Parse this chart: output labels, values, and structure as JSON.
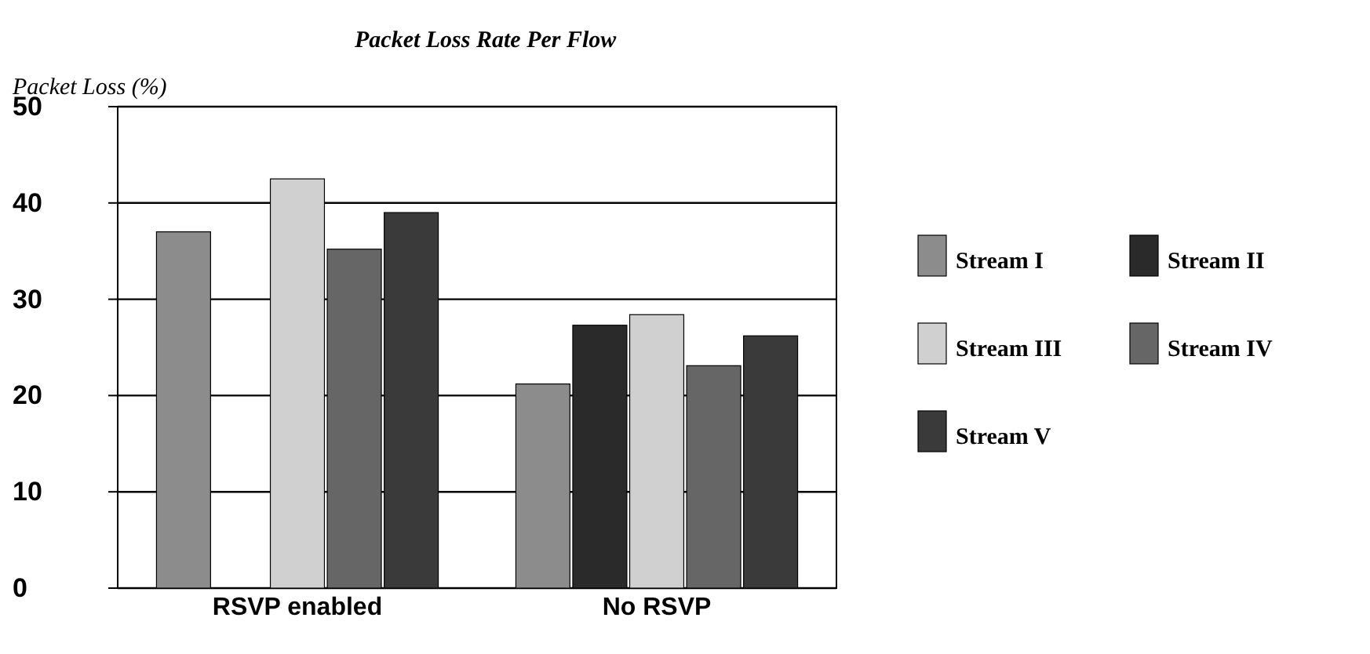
{
  "chart_data": {
    "type": "bar",
    "title": "Packet Loss Rate Per Flow",
    "ylabel": "Packet Loss (%)",
    "categories": [
      "RSVP enabled",
      "No RSVP"
    ],
    "series": [
      {
        "name": "Stream I",
        "color": "#8c8c8c",
        "values": [
          37,
          21.2
        ]
      },
      {
        "name": "Stream II",
        "color": "#2a2a2a",
        "values": [
          0,
          27.3
        ]
      },
      {
        "name": "Stream III",
        "color": "#d0d0d0",
        "values": [
          42.5,
          28.4
        ]
      },
      {
        "name": "Stream IV",
        "color": "#666666",
        "values": [
          35.2,
          23.1
        ]
      },
      {
        "name": "Stream V",
        "color": "#3a3a3a",
        "values": [
          39,
          26.2
        ]
      }
    ],
    "ylim": [
      0,
      50
    ],
    "yticks": [
      0,
      10,
      20,
      30,
      40,
      50
    ],
    "grid": "y",
    "legend": "right"
  }
}
